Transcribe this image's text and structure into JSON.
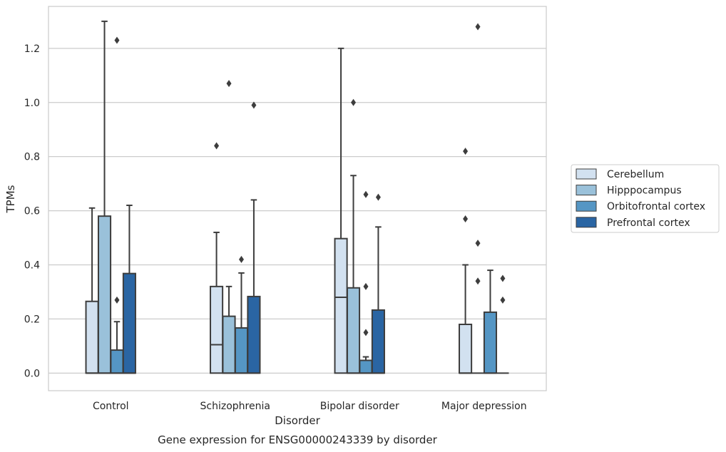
{
  "chart_data": {
    "type": "box",
    "title": "Gene expression for ENSG00000243339 by disorder",
    "xlabel": "Disorder",
    "ylabel": "TPMs",
    "ylim": [
      -0.065,
      1.355
    ],
    "yticks": [
      0.0,
      0.2,
      0.4,
      0.6,
      0.8,
      1.0,
      1.2
    ],
    "ytick_labels": [
      "0.0",
      "0.2",
      "0.4",
      "0.6",
      "0.8",
      "1.0",
      "1.2"
    ],
    "grid": "horizontal",
    "legend_position": "right",
    "categories": [
      "Control",
      "Schizophrenia",
      "Bipolar disorder",
      "Major depression"
    ],
    "series": [
      {
        "name": "Cerebellum",
        "color": "#d2e1f0",
        "boxes": [
          {
            "q1": 0.0,
            "median": 0.0,
            "q3": 0.265,
            "whisker_low": 0.0,
            "whisker_high": 0.61,
            "outliers": []
          },
          {
            "q1": 0.0,
            "median": 0.105,
            "q3": 0.32,
            "whisker_low": 0.0,
            "whisker_high": 0.52,
            "outliers": [
              0.84
            ]
          },
          {
            "q1": 0.0,
            "median": 0.28,
            "q3": 0.497,
            "whisker_low": 0.0,
            "whisker_high": 1.2,
            "outliers": []
          },
          {
            "q1": 0.0,
            "median": 0.0,
            "q3": 0.18,
            "whisker_low": 0.0,
            "whisker_high": 0.4,
            "outliers": [
              0.57,
              0.82
            ]
          }
        ]
      },
      {
        "name": "Hipppocampus",
        "color": "#9ac1da",
        "boxes": [
          {
            "q1": 0.0,
            "median": 0.0,
            "q3": 0.58,
            "whisker_low": 0.0,
            "whisker_high": 1.3,
            "outliers": []
          },
          {
            "q1": 0.0,
            "median": 0.0,
            "q3": 0.21,
            "whisker_low": 0.0,
            "whisker_high": 0.32,
            "outliers": [
              1.07
            ]
          },
          {
            "q1": 0.0,
            "median": 0.0,
            "q3": 0.315,
            "whisker_low": 0.0,
            "whisker_high": 0.73,
            "outliers": [
              1.0
            ]
          },
          {
            "q1": 0.0,
            "median": 0.0,
            "q3": 0.0,
            "whisker_low": 0.0,
            "whisker_high": 0.0,
            "outliers": [
              0.34,
              0.48,
              1.28
            ]
          }
        ]
      },
      {
        "name": "Orbitofrontal cortex",
        "color": "#5596c4",
        "boxes": [
          {
            "q1": 0.0,
            "median": 0.0,
            "q3": 0.085,
            "whisker_low": 0.0,
            "whisker_high": 0.19,
            "outliers": [
              0.27,
              1.23
            ]
          },
          {
            "q1": 0.0,
            "median": 0.0,
            "q3": 0.167,
            "whisker_low": 0.0,
            "whisker_high": 0.37,
            "outliers": [
              0.42
            ]
          },
          {
            "q1": 0.0,
            "median": 0.0,
            "q3": 0.047,
            "whisker_low": 0.0,
            "whisker_high": 0.06,
            "outliers": [
              0.15,
              0.32,
              0.66
            ]
          },
          {
            "q1": 0.0,
            "median": 0.0,
            "q3": 0.225,
            "whisker_low": 0.0,
            "whisker_high": 0.38,
            "outliers": []
          }
        ]
      },
      {
        "name": "Prefrontal cortex",
        "color": "#2a65a3",
        "boxes": [
          {
            "q1": 0.0,
            "median": 0.0,
            "q3": 0.368,
            "whisker_low": 0.0,
            "whisker_high": 0.62,
            "outliers": []
          },
          {
            "q1": 0.0,
            "median": 0.0,
            "q3": 0.283,
            "whisker_low": 0.0,
            "whisker_high": 0.64,
            "outliers": [
              0.99
            ]
          },
          {
            "q1": 0.0,
            "median": 0.0,
            "q3": 0.233,
            "whisker_low": 0.0,
            "whisker_high": 0.54,
            "outliers": [
              0.65
            ]
          },
          {
            "q1": 0.0,
            "median": 0.0,
            "q3": 0.0,
            "whisker_low": 0.0,
            "whisker_high": 0.0,
            "outliers": [
              0.27,
              0.35
            ]
          }
        ]
      }
    ]
  }
}
